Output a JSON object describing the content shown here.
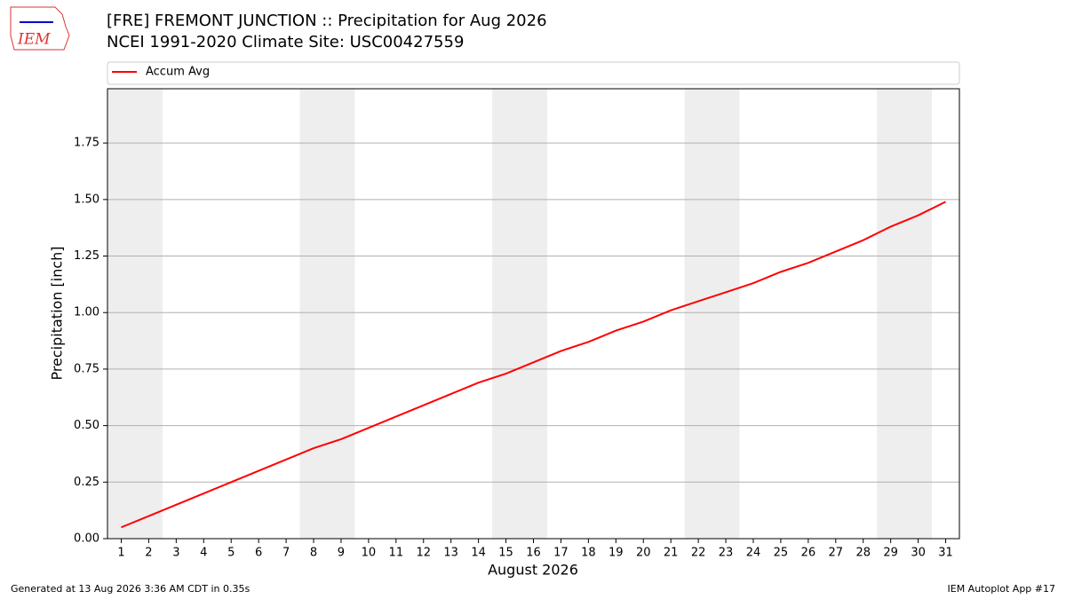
{
  "logo": "IEM",
  "chart_data": {
    "type": "line",
    "title": "[FRE] FREMONT JUNCTION  :: Precipitation for Aug 2026",
    "subtitle": "NCEI 1991-2020 Climate Site: USC00427559",
    "x_label": "August 2026",
    "y_label": "Precipitation [inch]",
    "x": [
      1,
      2,
      3,
      4,
      5,
      6,
      7,
      8,
      9,
      10,
      11,
      12,
      13,
      14,
      15,
      16,
      17,
      18,
      19,
      20,
      21,
      22,
      23,
      24,
      25,
      26,
      27,
      28,
      29,
      30,
      31
    ],
    "series": [
      {
        "name": "Accum Avg",
        "color": "#ff0000",
        "values": [
          0.05,
          0.1,
          0.15,
          0.2,
          0.25,
          0.3,
          0.35,
          0.4,
          0.44,
          0.49,
          0.54,
          0.59,
          0.64,
          0.69,
          0.73,
          0.78,
          0.83,
          0.87,
          0.92,
          0.96,
          1.01,
          1.05,
          1.09,
          1.13,
          1.18,
          1.22,
          1.27,
          1.32,
          1.38,
          1.43,
          1.49
        ]
      }
    ],
    "shaded_spans": [
      [
        0.5,
        2.5
      ],
      [
        7.5,
        9.5
      ],
      [
        14.5,
        16.5
      ],
      [
        21.5,
        23.5
      ],
      [
        28.5,
        30.5
      ]
    ],
    "shade_color": "#eeeeee",
    "xlim": [
      0.5,
      31.5
    ],
    "ylim": [
      0,
      1.99
    ],
    "xticks": [
      1,
      2,
      3,
      4,
      5,
      6,
      7,
      8,
      9,
      10,
      11,
      12,
      13,
      14,
      15,
      16,
      17,
      18,
      19,
      20,
      21,
      22,
      23,
      24,
      25,
      26,
      27,
      28,
      29,
      30,
      31
    ],
    "yticks": [
      {
        "value": 0,
        "label": "0.00"
      },
      {
        "value": 0.25,
        "label": "0.25"
      },
      {
        "value": 0.5,
        "label": "0.50"
      },
      {
        "value": 0.75,
        "label": "0.75"
      },
      {
        "value": 1,
        "label": "1.00"
      },
      {
        "value": 1.25,
        "label": "1.25"
      },
      {
        "value": 1.5,
        "label": "1.50"
      },
      {
        "value": 1.75,
        "label": "1.75"
      }
    ],
    "grid": true,
    "legend": "top"
  },
  "footer": {
    "left": "Generated at 13 Aug 2026 3:36 AM CDT in 0.35s",
    "right": "IEM Autoplot App #17"
  }
}
